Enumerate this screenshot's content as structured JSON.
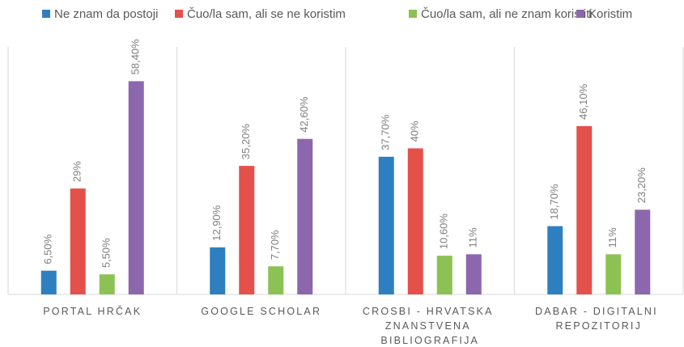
{
  "chart_data": {
    "type": "bar",
    "categories": [
      "PORTAL HRČAK",
      "GOOGLE SCHOLAR",
      "CROSBI - HRVATSKA ZNANSTVENA BIBLIOGRAFIJA",
      "DABAR - DIGITALNI REPOZITORIJ"
    ],
    "series": [
      {
        "name": "Ne znam da postoji",
        "color": "#2e7fc0",
        "values": [
          6.5,
          12.9,
          37.7,
          18.7
        ],
        "value_labels": [
          "6,50%",
          "12,90%",
          "37,70%",
          "18,70%"
        ]
      },
      {
        "name": "Čuo/la sam, ali se ne koristim",
        "color": "#e4514b",
        "values": [
          29,
          35.2,
          40,
          46.1
        ],
        "value_labels": [
          "29%",
          "35,20%",
          "40%",
          "46,10%"
        ]
      },
      {
        "name": "Čuo/la sam, ali ne znam koristiti",
        "color": "#8cc253",
        "values": [
          5.5,
          7.7,
          10.6,
          11
        ],
        "value_labels": [
          "5,50%",
          "7,70%",
          "10,60%",
          "11%"
        ]
      },
      {
        "name": "Koristim",
        "color": "#8c67ae",
        "values": [
          58.4,
          42.6,
          11,
          23.2
        ],
        "value_labels": [
          "58,40%",
          "42,60%",
          "11%",
          "23,20%"
        ]
      }
    ],
    "ylim": [
      0,
      70
    ],
    "legend": "top"
  }
}
